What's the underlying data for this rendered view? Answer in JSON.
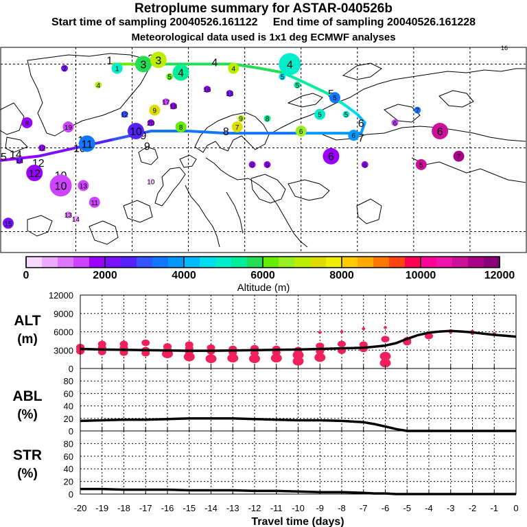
{
  "header": {
    "title": "Retroplume summary for ASTAR-040526b",
    "start_label": "Start time of sampling 20040526.161122",
    "end_label": "End time of sampling 20040526.161228",
    "met_label": "Meteorological data used is 1x1 deg ECMWF analyses"
  },
  "map": {
    "corner_label": "16",
    "cluster_points": [
      {
        "label": "2",
        "lon": -48,
        "lat": 79,
        "alt": 2000,
        "size": 0
      },
      {
        "label": "1",
        "lon": -34,
        "lat": 79,
        "alt": 5000,
        "size": 1
      },
      {
        "label": "3",
        "lon": -27,
        "lat": 80,
        "alt": 5800,
        "size": 2
      },
      {
        "label": "3",
        "lon": -23,
        "lat": 81,
        "alt": 6800,
        "size": 2
      },
      {
        "label": "4",
        "lon": -17,
        "lat": 78,
        "alt": 5200,
        "size": 2
      },
      {
        "label": "5",
        "lon": -20,
        "lat": 77,
        "alt": 6000,
        "size": 0
      },
      {
        "label": "4",
        "lon": -39,
        "lat": 75,
        "alt": 6800,
        "size": 0
      },
      {
        "label": "4",
        "lon": -3,
        "lat": 79,
        "alt": 7000,
        "size": 1
      },
      {
        "label": "4",
        "lon": 12,
        "lat": 80,
        "alt": 5000,
        "size": 3
      },
      {
        "label": "5",
        "lon": 10,
        "lat": 77,
        "alt": 4500,
        "size": 0
      },
      {
        "label": "5",
        "lon": 14,
        "lat": 75,
        "alt": 5500,
        "size": 0
      },
      {
        "label": "13",
        "lon": -4,
        "lat": 73,
        "alt": 2000,
        "size": 0
      },
      {
        "label": "16",
        "lon": -10,
        "lat": 74,
        "alt": 1800,
        "size": 0
      },
      {
        "label": "17",
        "lon": -21,
        "lat": 71,
        "alt": 1500,
        "size": 0
      },
      {
        "label": "18",
        "lon": -19,
        "lat": 70,
        "alt": 1600,
        "size": 0
      },
      {
        "label": "9",
        "lon": -24,
        "lat": 69,
        "alt": 7500,
        "size": 1
      },
      {
        "label": "12",
        "lon": -32,
        "lat": 68,
        "alt": 3000,
        "size": 0
      },
      {
        "label": "9",
        "lon": -1,
        "lat": 67,
        "alt": 7000,
        "size": 0
      },
      {
        "label": "8",
        "lon": 6,
        "lat": 67,
        "alt": 5500,
        "size": 0
      },
      {
        "label": "5",
        "lon": 24,
        "lat": 72,
        "alt": 3400,
        "size": 1
      },
      {
        "label": "5",
        "lon": 20,
        "lat": 68,
        "alt": 5000,
        "size": 1
      },
      {
        "label": "5",
        "lon": 27,
        "lat": 68,
        "alt": 4800,
        "size": 0
      },
      {
        "label": "7",
        "lon": 46,
        "lat": 69,
        "alt": 3400,
        "size": 0
      },
      {
        "label": "7",
        "lon": -2,
        "lat": 65,
        "alt": 7500,
        "size": 1
      },
      {
        "label": "8",
        "lon": -17,
        "lat": 65,
        "alt": 6000,
        "size": 1
      },
      {
        "label": "10",
        "lon": -29,
        "lat": 64,
        "alt": 2500,
        "size": 2
      },
      {
        "label": "20",
        "lon": -25,
        "lat": 66,
        "alt": 1600,
        "size": 0
      },
      {
        "label": "6",
        "lon": 15,
        "lat": 64,
        "alt": 6500,
        "size": 1
      },
      {
        "label": "6",
        "lon": 29,
        "lat": 63,
        "alt": 3800,
        "size": 1
      },
      {
        "label": "6",
        "lon": 52,
        "lat": 64,
        "alt": 11000,
        "size": 2
      },
      {
        "label": "6",
        "lon": 40,
        "lat": 66,
        "alt": 1500,
        "size": 0
      },
      {
        "label": "8",
        "lon": -58,
        "lat": 66,
        "alt": 1800,
        "size": 1
      },
      {
        "label": "19",
        "lon": -47,
        "lat": 65,
        "alt": 1500,
        "size": 1
      },
      {
        "label": "11",
        "lon": -42,
        "lat": 61,
        "alt": 3500,
        "size": 2
      },
      {
        "label": "6",
        "lon": 23,
        "lat": 58,
        "alt": 1800,
        "size": 2
      },
      {
        "label": "7",
        "lon": 57,
        "lat": 58,
        "alt": 11500,
        "size": 1
      },
      {
        "label": "5",
        "lon": 47,
        "lat": 56,
        "alt": 11000,
        "size": 1
      },
      {
        "label": "8",
        "lon": 2,
        "lat": 56,
        "alt": 1700,
        "size": 0
      },
      {
        "label": "9",
        "lon": 6,
        "lat": 56,
        "alt": 1700,
        "size": 0
      },
      {
        "label": "6",
        "lon": 32,
        "lat": 56,
        "alt": 1600,
        "size": 0
      },
      {
        "label": "12",
        "lon": -56,
        "lat": 54,
        "alt": 1600,
        "size": 2
      },
      {
        "label": "10",
        "lon": -49,
        "lat": 51,
        "alt": 1400,
        "size": 3
      },
      {
        "label": "13",
        "lon": -43,
        "lat": 51,
        "alt": 1300,
        "size": 1
      },
      {
        "label": "11",
        "lon": -40,
        "lat": 47,
        "alt": 1300,
        "size": 1
      },
      {
        "label": "13",
        "lon": -47,
        "lat": 44,
        "alt": 1000,
        "size": 0
      },
      {
        "label": "14",
        "lon": -45,
        "lat": 43,
        "alt": 400,
        "size": 0
      },
      {
        "label": "15",
        "lon": -63,
        "lat": 42,
        "alt": 2000,
        "size": 1
      },
      {
        "label": "10",
        "lon": -25,
        "lat": 52,
        "alt": 0,
        "size": 0
      },
      {
        "label": "12",
        "lon": -54,
        "lat": 60,
        "alt": 1600,
        "size": 0
      },
      {
        "label": "14",
        "lon": -60,
        "lat": 57,
        "alt": 2000,
        "size": 0
      }
    ]
  },
  "colorbar": {
    "title": "Altitude (m)",
    "tick_labels": [
      "0",
      "2000",
      "4000",
      "6000",
      "8000",
      "10000",
      "12000"
    ],
    "colors": [
      "#f7d8ff",
      "#eeaaff",
      "#dd77ff",
      "#cc44ff",
      "#9900ff",
      "#7711ff",
      "#5522ff",
      "#3355ff",
      "#1177ff",
      "#0099ff",
      "#00bbff",
      "#00ddee",
      "#00eecc",
      "#00ee99",
      "#22dd55",
      "#66ee00",
      "#99ee22",
      "#bbee00",
      "#dddd00",
      "#eeee00",
      "#ffcc00",
      "#ffaa00",
      "#ff7700",
      "#ff4411",
      "#ff0055",
      "#ff0099",
      "#ee11aa",
      "#cc1199",
      "#aa0088",
      "#880077"
    ]
  },
  "panels": {
    "alt_label": "ALT",
    "alt_unit": "(m)",
    "abl_label": "ABL",
    "abl_unit": "(%)",
    "str_label": "STR",
    "str_unit": "(%)",
    "xlabel": "Travel time (days)"
  },
  "chart_data": [
    {
      "type": "line",
      "title": "ALT (m)",
      "x": [
        -20,
        -19,
        -18,
        -17,
        -16,
        -15,
        -14,
        -13,
        -12,
        -11,
        -10,
        -9,
        -8,
        -7,
        -6.5,
        -6,
        -5.5,
        -5,
        -4.5,
        -4,
        -3.5,
        -3,
        -2.5,
        -2,
        -1.5,
        -1,
        -0.5,
        0
      ],
      "y": [
        3200,
        3100,
        3050,
        3000,
        2950,
        2900,
        2900,
        2950,
        3000,
        3050,
        3100,
        3200,
        3300,
        3400,
        3550,
        3750,
        4150,
        4850,
        5450,
        5850,
        6050,
        6150,
        6050,
        5900,
        5700,
        5500,
        5350,
        5200
      ],
      "scatter_x": [
        -20,
        -20,
        -20,
        -19,
        -19,
        -19,
        -19,
        -18,
        -18,
        -18,
        -18,
        -17,
        -17,
        -17,
        -16,
        -16,
        -16,
        -15,
        -15,
        -15,
        -15,
        -14,
        -14,
        -14,
        -13,
        -13,
        -13,
        -12,
        -12,
        -12,
        -11,
        -11,
        -11,
        -10,
        -10,
        -10,
        -9,
        -9,
        -9,
        -9,
        -8,
        -8,
        -8,
        -7,
        -7,
        -7,
        -6,
        -6,
        -6,
        -6,
        -5,
        -5,
        -4,
        -4,
        -3,
        -3,
        -2,
        -2,
        -1
      ],
      "scatter_y": [
        2800,
        3200,
        3500,
        2700,
        3100,
        3400,
        4000,
        2600,
        3000,
        3400,
        4000,
        2500,
        3000,
        4200,
        2400,
        3100,
        3600,
        1900,
        2700,
        3300,
        3900,
        1600,
        2800,
        3400,
        1700,
        2600,
        3200,
        1600,
        2500,
        3300,
        1700,
        2600,
        3200,
        1200,
        2200,
        3000,
        1800,
        2800,
        3700,
        5900,
        2900,
        4000,
        6000,
        3200,
        3900,
        6500,
        900,
        2000,
        4800,
        6700,
        4300,
        4600,
        5300,
        5800,
        5900,
        6200,
        5700,
        6100,
        5700
      ],
      "ylim": [
        0,
        12000
      ],
      "yticks": [
        0,
        3000,
        6000,
        9000,
        12000
      ],
      "ylabel": "ALT (m)"
    },
    {
      "type": "line",
      "title": "ABL (%)",
      "x": [
        -20,
        -19,
        -18,
        -17,
        -16,
        -15,
        -14,
        -13,
        -12,
        -11,
        -10,
        -9,
        -8,
        -7,
        -6.5,
        -6,
        -5.5,
        -5,
        -4,
        -3,
        -2,
        -1,
        0
      ],
      "y": [
        16,
        17,
        18,
        18,
        19,
        20,
        20,
        20,
        19,
        18,
        17,
        17,
        16,
        14,
        11,
        7,
        3,
        0,
        0,
        0,
        0,
        0,
        0
      ],
      "ylim": [
        0,
        100
      ],
      "yticks": [
        0,
        20,
        40,
        60,
        80
      ],
      "ylabel": "ABL (%)"
    },
    {
      "type": "line",
      "title": "STR (%)",
      "x": [
        -20,
        -19,
        -18,
        -17,
        -16,
        -15,
        -14,
        -13,
        -12,
        -11,
        -10,
        -9,
        -8,
        -7,
        -6.5,
        -6,
        -5.5,
        -5,
        -4,
        -3,
        -2,
        -1,
        0
      ],
      "y": [
        8,
        8,
        7,
        7,
        7,
        6,
        6,
        6,
        5,
        5,
        4,
        3,
        3,
        2,
        1,
        1,
        0,
        0,
        0,
        0,
        0,
        0,
        0
      ],
      "ylim": [
        0,
        100
      ],
      "yticks": [
        0,
        20,
        40,
        60,
        80
      ],
      "ylabel": "STR (%)"
    }
  ],
  "x_axis": {
    "ticks": [
      -20,
      -19,
      -18,
      -17,
      -16,
      -15,
      -14,
      -13,
      -12,
      -11,
      -10,
      -9,
      -8,
      -7,
      -6,
      -5,
      -4,
      -3,
      -2,
      -1,
      0
    ],
    "tick_labels": [
      "-20",
      "-19",
      "-18",
      "-17",
      "-16",
      "-15",
      "-14",
      "-13",
      "-12",
      "-11",
      "-10",
      "-9",
      "-8",
      "-7",
      "-6",
      "-5",
      "-4",
      "-3",
      "-2",
      "-1",
      "0"
    ],
    "xlim": [
      -20,
      0
    ]
  }
}
